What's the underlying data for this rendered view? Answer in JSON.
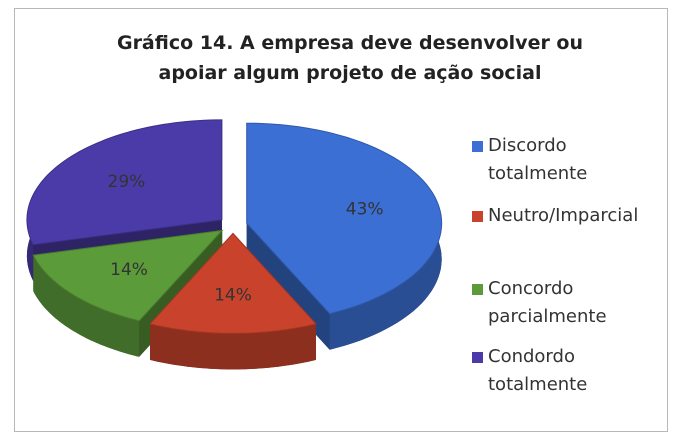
{
  "chart_data": {
    "type": "pie",
    "title": "Gráfico 14. A empresa deve desenvolver ou apoiar algum projeto de ação social",
    "categories": [
      "Discordo totalmente",
      "Neutro/Imparcial",
      "Concordo parcialmente",
      "Condordo totalmente"
    ],
    "values": [
      43,
      14,
      14,
      29
    ],
    "value_labels": [
      "43%",
      "14%",
      "14%",
      "29%"
    ],
    "colors": [
      "#3b6fd3",
      "#c9432c",
      "#5b9b3a",
      "#4b3ba8"
    ],
    "legend": "right"
  }
}
